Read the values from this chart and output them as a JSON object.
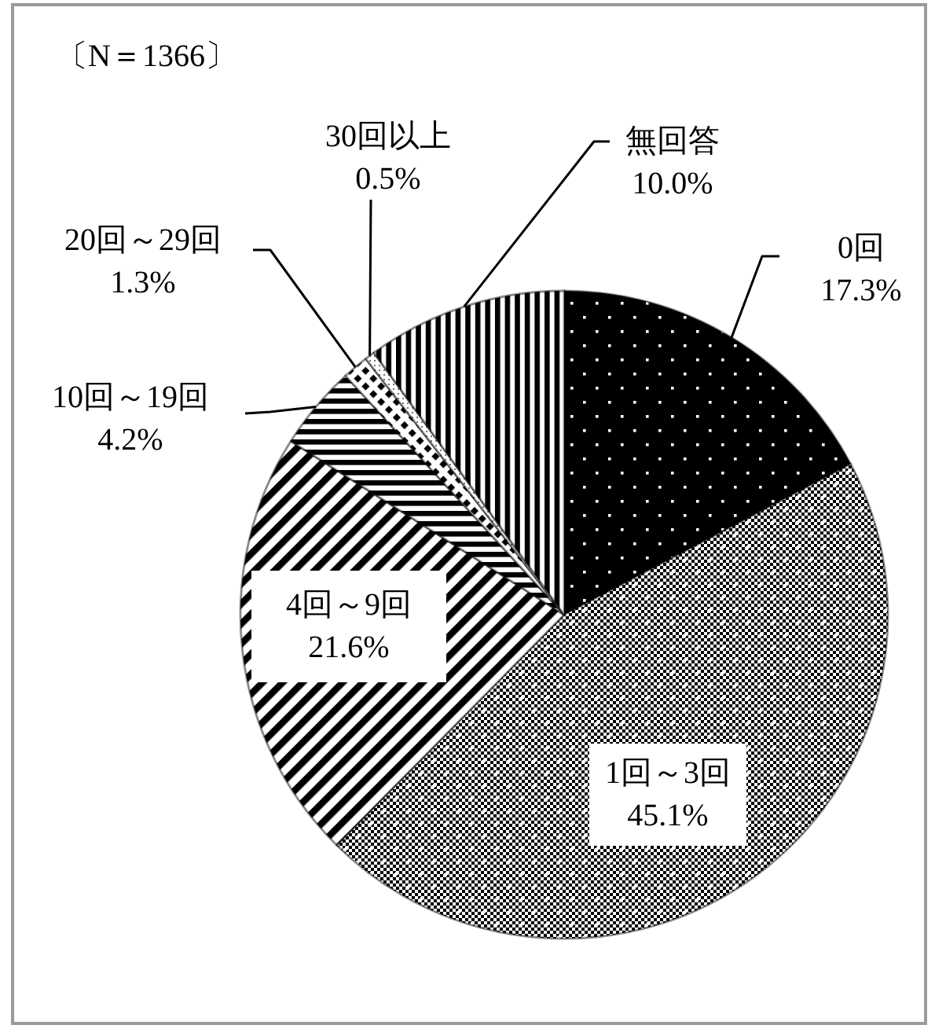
{
  "chart_data": {
    "type": "pie",
    "categories": [
      "0回",
      "1回～3回",
      "4回～9回",
      "10回～19回",
      "20回～29回",
      "30回以上",
      "無回答"
    ],
    "values": [
      17.3,
      45.1,
      21.6,
      4.2,
      1.3,
      0.5,
      10.0
    ],
    "colors": [
      "#000000",
      "#000000",
      "#000000",
      "#000000",
      "#000000",
      "#000000",
      "#000000"
    ],
    "value_labels": [
      "17.3%",
      "45.1%",
      "21.6%",
      "4.2%",
      "1.3%",
      "0.5%",
      "10.0%"
    ],
    "annotations": [
      "〔N＝1366〕"
    ]
  }
}
